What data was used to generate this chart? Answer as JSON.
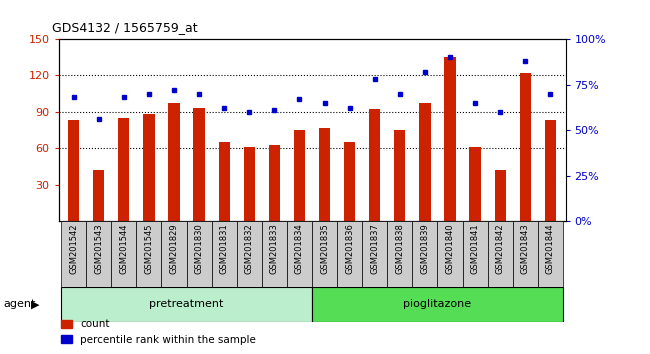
{
  "title": "GDS4132 / 1565759_at",
  "categories": [
    "GSM201542",
    "GSM201543",
    "GSM201544",
    "GSM201545",
    "GSM201829",
    "GSM201830",
    "GSM201831",
    "GSM201832",
    "GSM201833",
    "GSM201834",
    "GSM201835",
    "GSM201836",
    "GSM201837",
    "GSM201838",
    "GSM201839",
    "GSM201840",
    "GSM201841",
    "GSM201842",
    "GSM201843",
    "GSM201844"
  ],
  "count_values": [
    83,
    42,
    85,
    88,
    97,
    93,
    65,
    61,
    63,
    75,
    77,
    65,
    92,
    75,
    97,
    135,
    61,
    42,
    122,
    83
  ],
  "percentile_values": [
    68,
    56,
    68,
    70,
    72,
    70,
    62,
    60,
    61,
    67,
    65,
    62,
    78,
    70,
    82,
    90,
    65,
    60,
    88,
    70
  ],
  "bar_color": "#cc2200",
  "percentile_color": "#0000cc",
  "ylim_left": [
    0,
    150
  ],
  "ylim_right": [
    0,
    100
  ],
  "yticks_left": [
    30,
    60,
    90,
    120,
    150
  ],
  "yticks_right": [
    0,
    25,
    50,
    75,
    100
  ],
  "ytick_labels_right": [
    "0%",
    "25%",
    "50%",
    "75%",
    "100%"
  ],
  "pretreatment_color": "#bbeecc",
  "pioglitazone_color": "#55dd55",
  "agent_label": "agent",
  "pretreatment_label": "pretreatment",
  "pioglitazone_label": "pioglitazone",
  "legend_count": "count",
  "legend_percentile": "percentile rank within the sample",
  "bar_width": 0.45
}
